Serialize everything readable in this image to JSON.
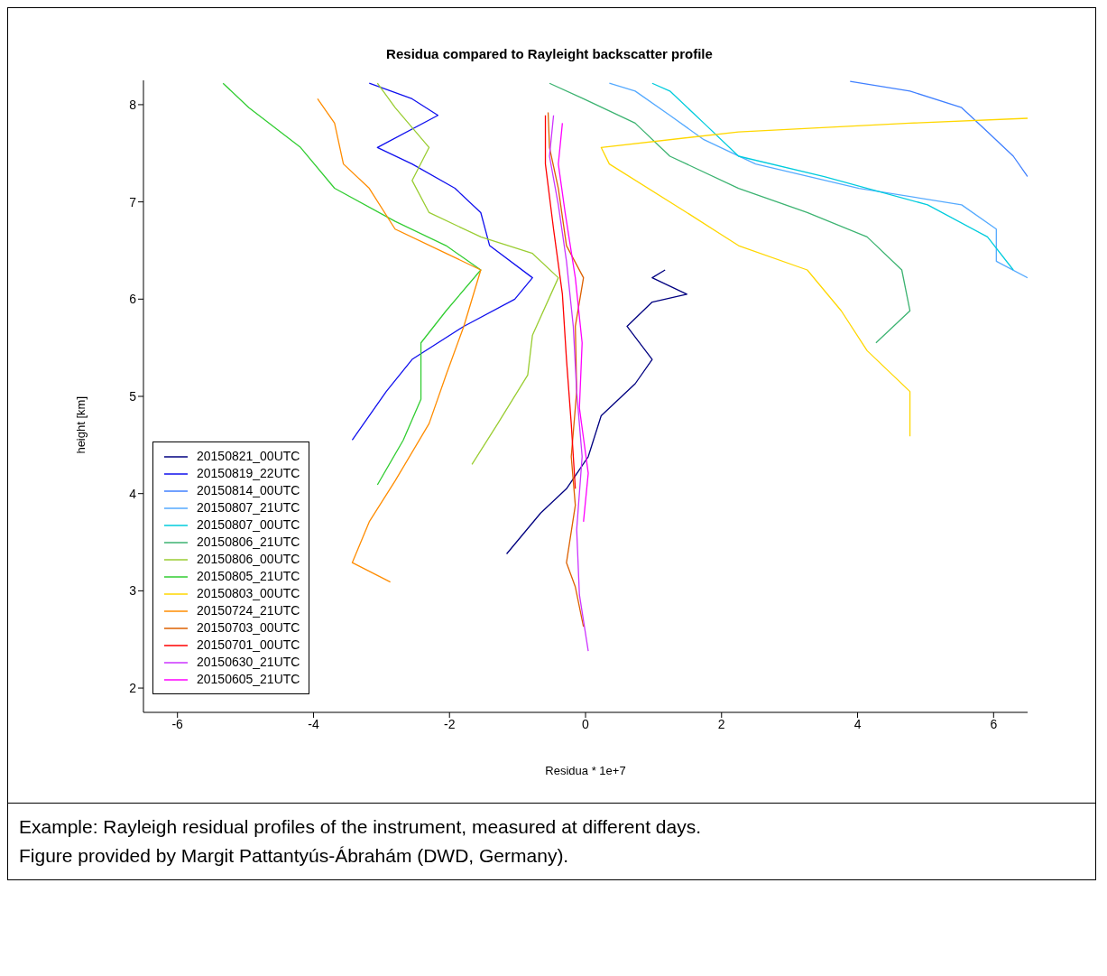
{
  "chart_data": {
    "type": "line",
    "title": "Residua compared to Rayleight backscatter profile",
    "xlabel": "Residua * 1e+7",
    "ylabel": "height [km]",
    "annotations": [
      "Example: Rayleigh residual profiles of the instrument, measured at different days.",
      "Figure provided by Margit Pattantyús-Ábrahám (DWD, Germany)."
    ],
    "xlim": [
      -6.5,
      6.5
    ],
    "ylim": [
      1.75,
      8.25
    ],
    "xticks": [
      -6,
      -4,
      -2,
      0,
      2,
      4,
      6
    ],
    "yticks": [
      2,
      3,
      4,
      5,
      6,
      7,
      8
    ],
    "grid": false,
    "legend": "left",
    "marker": "none",
    "line_style": "solid",
    "series": [
      {
        "name": "20150821_00UTC",
        "color": "#000080",
        "x": [
          -1.16,
          -0.66,
          -0.28,
          0.04,
          0.23,
          0.73,
          0.98,
          0.61,
          0.98,
          1.49,
          0.98,
          1.17
        ],
        "values": [
          3.38,
          3.8,
          4.05,
          4.38,
          4.8,
          5.13,
          5.38,
          5.72,
          5.97,
          6.05,
          6.22,
          6.3
        ]
      },
      {
        "name": "20150819_22UTC",
        "color": "#1010ee",
        "x": [
          -3.43,
          -2.93,
          -2.55,
          -1.79,
          -1.04,
          -0.78,
          -1.41,
          -1.54,
          -1.92,
          -2.55,
          -3.06,
          -2.17,
          -2.55,
          -3.18
        ],
        "values": [
          4.55,
          5.05,
          5.38,
          5.72,
          6.0,
          6.22,
          6.55,
          6.89,
          7.14,
          7.39,
          7.56,
          7.89,
          8.06,
          8.22
        ]
      },
      {
        "name": "20150814_00UTC",
        "color": "#4080ff",
        "x": [
          6.5,
          6.29,
          5.91,
          5.53,
          4.77,
          3.89
        ],
        "values": [
          7.26,
          7.47,
          7.72,
          7.97,
          8.14,
          8.24
        ]
      },
      {
        "name": "20150807_21UTC",
        "color": "#55aaff",
        "x": [
          6.5,
          6.04,
          6.04,
          5.53,
          4.02,
          2.5,
          1.74,
          1.24,
          0.73,
          0.35
        ],
        "values": [
          6.22,
          6.39,
          6.72,
          6.97,
          7.14,
          7.39,
          7.64,
          7.89,
          8.14,
          8.22
        ]
      },
      {
        "name": "20150807_00UTC",
        "color": "#00ccdd",
        "x": [
          6.29,
          5.91,
          5.03,
          3.51,
          2.25,
          1.74,
          1.24,
          0.98
        ],
        "values": [
          6.3,
          6.64,
          6.97,
          7.26,
          7.47,
          7.81,
          8.14,
          8.22
        ]
      },
      {
        "name": "20150806_21UTC",
        "color": "#3cb371",
        "x": [
          4.27,
          4.77,
          4.65,
          4.14,
          3.26,
          2.25,
          1.24,
          0.73,
          -0.03,
          -0.53
        ],
        "values": [
          5.55,
          5.88,
          6.3,
          6.64,
          6.89,
          7.14,
          7.47,
          7.81,
          8.06,
          8.22
        ]
      },
      {
        "name": "20150806_00UTC",
        "color": "#9acd32",
        "x": [
          -1.67,
          -1.29,
          -0.85,
          -0.78,
          -0.4,
          -0.78,
          -1.54,
          -2.3,
          -2.55,
          -2.3,
          -2.8,
          -3.06
        ],
        "values": [
          4.3,
          4.72,
          5.22,
          5.63,
          6.22,
          6.47,
          6.64,
          6.89,
          7.22,
          7.56,
          7.97,
          8.22
        ]
      },
      {
        "name": "20150805_21UTC",
        "color": "#32cd32",
        "x": [
          -3.06,
          -2.68,
          -2.42,
          -2.42,
          -2.05,
          -1.54,
          -2.05,
          -2.8,
          -3.69,
          -4.19,
          -4.95,
          -5.33
        ],
        "values": [
          4.09,
          4.55,
          4.97,
          5.55,
          5.88,
          6.3,
          6.55,
          6.8,
          7.14,
          7.56,
          7.97,
          8.22
        ]
      },
      {
        "name": "20150803_00UTC",
        "color": "#ffd700",
        "x": [
          4.77,
          4.77,
          4.14,
          3.76,
          3.26,
          2.25,
          1.49,
          0.35,
          0.23,
          2.25,
          4.77,
          6.5
        ],
        "values": [
          4.59,
          5.05,
          5.47,
          5.88,
          6.3,
          6.55,
          6.89,
          7.39,
          7.56,
          7.72,
          7.81,
          7.86
        ]
      },
      {
        "name": "20150724_21UTC",
        "color": "#ff8c00",
        "x": [
          -2.87,
          -3.43,
          -3.18,
          -2.8,
          -2.3,
          -2.05,
          -1.79,
          -1.54,
          -2.05,
          -2.8,
          -3.18,
          -3.56,
          -3.69,
          -3.94
        ],
        "values": [
          3.09,
          3.29,
          3.71,
          4.13,
          4.72,
          5.22,
          5.72,
          6.3,
          6.47,
          6.72,
          7.14,
          7.39,
          7.81,
          8.06
        ]
      },
      {
        "name": "20150703_00UTC",
        "color": "#dd6000",
        "x": [
          -0.03,
          -0.15,
          -0.28,
          -0.15,
          -0.21,
          -0.13,
          -0.15,
          -0.03,
          -0.28,
          -0.4,
          -0.53,
          -0.55
        ],
        "values": [
          2.63,
          3.04,
          3.29,
          3.88,
          4.38,
          5.05,
          5.72,
          6.22,
          6.55,
          7.14,
          7.56,
          7.92
        ]
      },
      {
        "name": "20150701_00UTC",
        "color": "#ff0000",
        "x": [
          -0.15,
          -0.21,
          -0.28,
          -0.34,
          -0.47,
          -0.59,
          -0.59
        ],
        "values": [
          4.05,
          4.72,
          5.38,
          6.05,
          6.72,
          7.39,
          7.89
        ]
      },
      {
        "name": "20150630_21UTC",
        "color": "#cc33ff",
        "x": [
          0.04,
          -0.09,
          -0.13,
          -0.05,
          -0.13,
          -0.18,
          -0.28,
          -0.4,
          -0.53,
          -0.47
        ],
        "values": [
          2.38,
          2.96,
          3.63,
          4.38,
          5.05,
          5.72,
          6.39,
          6.97,
          7.47,
          7.89
        ]
      },
      {
        "name": "20150605_21UTC",
        "color": "#ff00ff",
        "x": [
          -0.03,
          0.04,
          -0.09,
          -0.05,
          -0.15,
          -0.3,
          -0.4,
          -0.34
        ],
        "values": [
          3.71,
          4.21,
          4.88,
          5.55,
          6.22,
          6.89,
          7.39,
          7.81
        ]
      }
    ]
  }
}
